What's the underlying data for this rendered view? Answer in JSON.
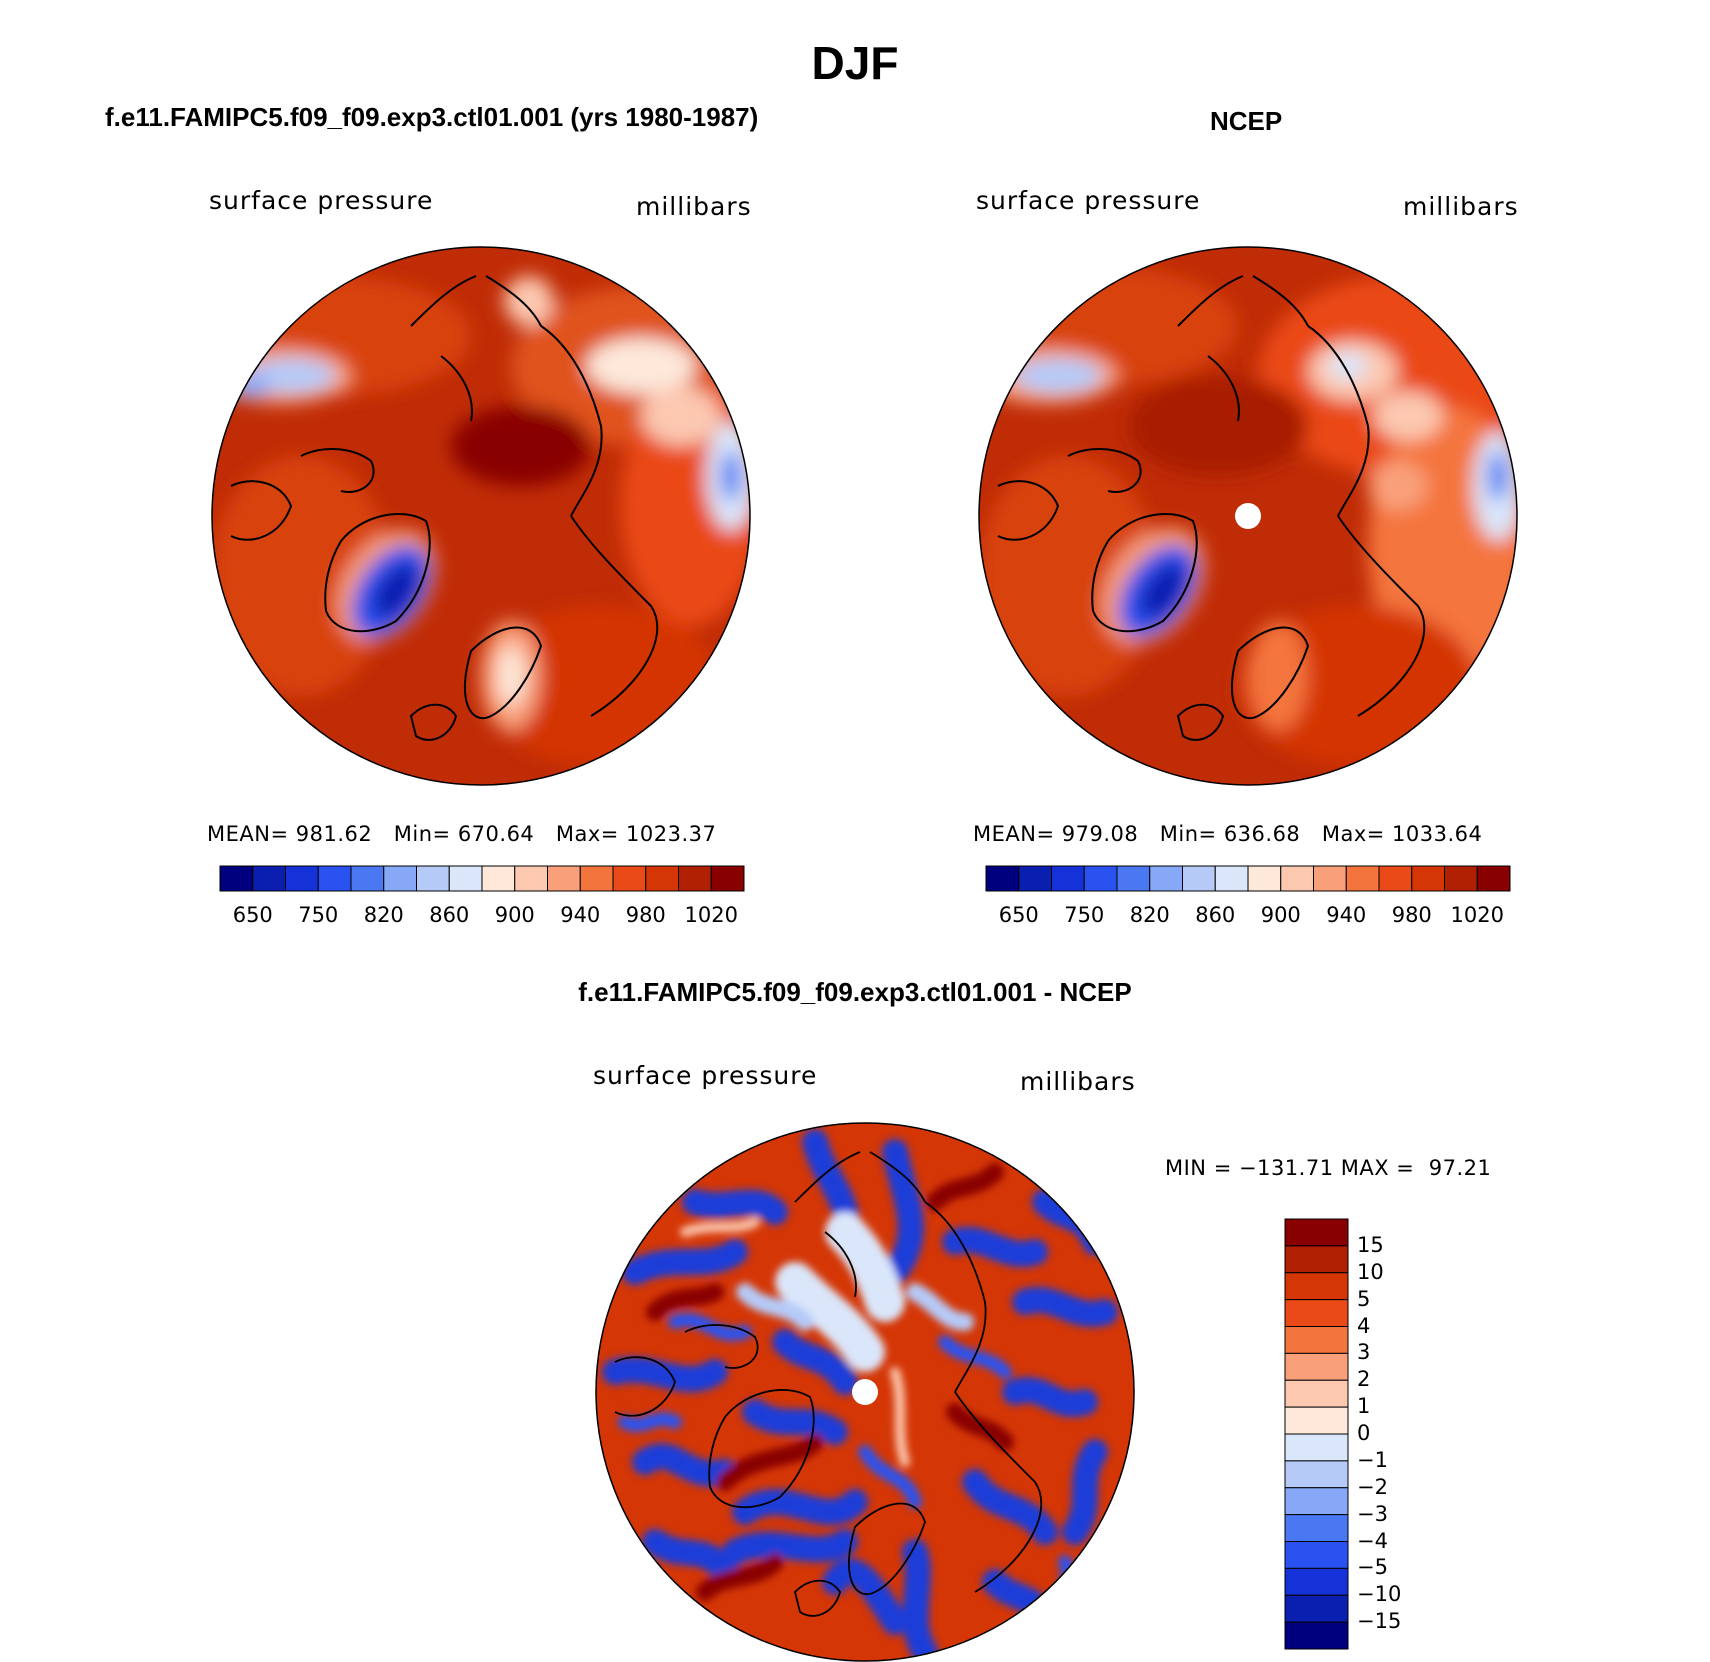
{
  "figure": {
    "title": "DJF",
    "panels": [
      {
        "title": "f.e11.FAMIPC5.f09_f09.exp3.ctl01.001 (yrs 1980-1987)",
        "variable_label": "surface pressure",
        "units_label": "millibars",
        "stats": {
          "mean_label": "MEAN=",
          "mean": "981.62",
          "min_label": "Min=",
          "min": "670.64",
          "max_label": "Max=",
          "max": "1023.37"
        }
      },
      {
        "title": "NCEP",
        "variable_label": "surface pressure",
        "units_label": "millibars",
        "stats": {
          "mean_label": "MEAN=",
          "mean": "979.08",
          "min_label": "Min=",
          "min": "636.68",
          "max_label": "Max=",
          "max": "1033.64"
        }
      },
      {
        "title": "f.e11.FAMIPC5.f09_f09.exp3.ctl01.001 - NCEP",
        "variable_label": "surface pressure",
        "units_label": "millibars",
        "stats": {
          "min_label": "MIN =",
          "min": "−131.71",
          "max_label": "MAX =",
          "max": "97.21"
        }
      }
    ],
    "colorbar_abs": {
      "colors": [
        "#00007f",
        "#0a1eb0",
        "#1432d8",
        "#2a52f0",
        "#4a78f2",
        "#86a8f6",
        "#b6caf8",
        "#dae6fa",
        "#fde8da",
        "#fcc8b0",
        "#f9a07a",
        "#f4743e",
        "#ea4a18",
        "#d43606",
        "#b22004",
        "#880000"
      ],
      "ticks": [
        "650",
        "750",
        "820",
        "860",
        "900",
        "940",
        "980",
        "1020"
      ]
    },
    "colorbar_diff": {
      "colors": [
        "#00007f",
        "#0a1eb0",
        "#1432d8",
        "#2a52f0",
        "#4a78f2",
        "#86a8f6",
        "#b6caf8",
        "#dae6fa",
        "#fde8da",
        "#fcc8b0",
        "#f9a07a",
        "#f4743e",
        "#ea4a18",
        "#d43606",
        "#b22004",
        "#880000"
      ],
      "ticks": [
        "15",
        "10",
        "5",
        "4",
        "3",
        "2",
        "1",
        "0",
        "−1",
        "−2",
        "−3",
        "−4",
        "−5",
        "−10",
        "−15"
      ]
    }
  }
}
